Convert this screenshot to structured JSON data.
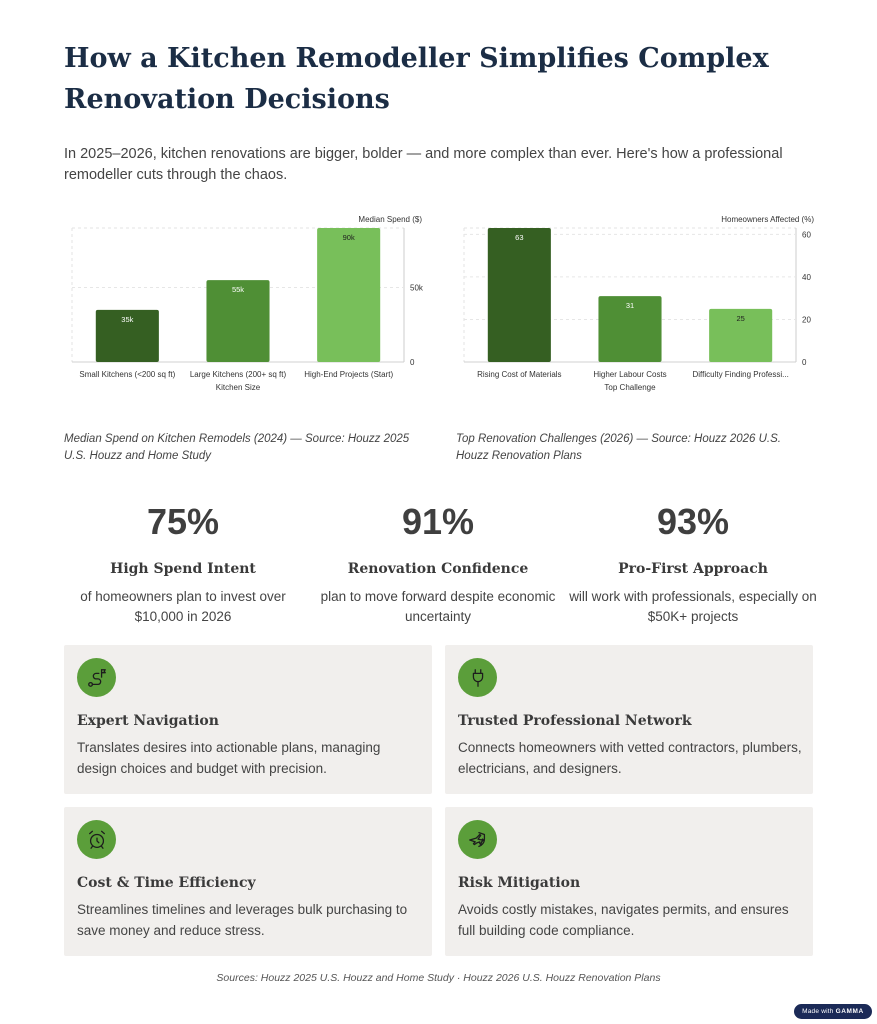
{
  "page": {
    "title": "How a Kitchen Remodeller Simplifies Complex Renovation Decisions",
    "intro": "In 2025–2026, kitchen renovations are bigger, bolder — and more complex than ever. Here's how a professional remodeller cuts through the chaos."
  },
  "chart_data": [
    {
      "type": "bar",
      "categories": [
        "Small Kitchens (<200 sq ft)",
        "Large Kitchens (200+ sq ft)",
        "High-End Projects (Start)"
      ],
      "values": [
        35000,
        55000,
        90000
      ],
      "data_labels": [
        "35k",
        "55k",
        "90k"
      ],
      "colors": [
        "#355f22",
        "#4f8f35",
        "#78bf5a"
      ],
      "xlabel": "Kitchen Size",
      "ylabel": "Median Spend ($)",
      "yticks": [
        0,
        50000
      ],
      "ytick_labels": [
        "0",
        "50k"
      ],
      "ylim": [
        0,
        90000
      ],
      "y_axis_side": "right",
      "grid": true,
      "caption": "Median Spend on Kitchen Remodels (2024) — Source: Houzz 2025 U.S. Houzz and Home Study"
    },
    {
      "type": "bar",
      "categories": [
        "Rising Cost of Materials",
        "Higher Labour Costs",
        "Difficulty Finding Professi..."
      ],
      "values": [
        63,
        31,
        25
      ],
      "data_labels": [
        "63",
        "31",
        "25"
      ],
      "colors": [
        "#355f22",
        "#4f8f35",
        "#78bf5a"
      ],
      "xlabel": "Top Challenge",
      "ylabel": "Homeowners Affected (%)",
      "yticks": [
        0,
        20,
        40,
        60
      ],
      "ytick_labels": [
        "0",
        "20",
        "40",
        "60"
      ],
      "ylim": [
        0,
        63
      ],
      "y_axis_side": "right",
      "grid": true,
      "caption": "Top Renovation Challenges (2026) — Source: Houzz 2026 U.S. Houzz Renovation Plans"
    }
  ],
  "stats": [
    {
      "value": "75%",
      "label": "High Spend Intent",
      "desc": "of homeowners plan to invest over $10,000 in 2026"
    },
    {
      "value": "91%",
      "label": "Renovation Confidence",
      "desc": "plan to move forward despite economic uncertainty"
    },
    {
      "value": "93%",
      "label": "Pro-First Approach",
      "desc": "will work with professionals, especially on $50K+ projects"
    }
  ],
  "cards": [
    {
      "icon": "route-flag-icon",
      "title": "Expert Navigation",
      "desc": "Translates desires into actionable plans, managing design choices and budget with precision."
    },
    {
      "icon": "plug-icon",
      "title": "Trusted Professional Network",
      "desc": "Connects homeowners with vetted contractors, plumbers, electricians, and designers."
    },
    {
      "icon": "alarm-clock-icon",
      "title": "Cost & Time Efficiency",
      "desc": "Streamlines timelines and leverages bulk purchasing to save money and reduce stress."
    },
    {
      "icon": "shield-plane-icon",
      "title": "Risk Mitigation",
      "desc": "Avoids costly mistakes, navigates permits, and ensures full building code compliance."
    }
  ],
  "sources": "Sources: Houzz 2025 U.S. Houzz and Home Study · Houzz 2026 U.S. Houzz Renovation Plans",
  "badge": {
    "prefix": "Made with",
    "brand": "GAMMA"
  },
  "colors": {
    "title": "#1b2d45",
    "accent": "#5b9e3a",
    "card_bg": "#f1efed",
    "bar_dark": "#355f22",
    "bar_mid": "#4f8f35",
    "bar_light": "#78bf5a"
  }
}
